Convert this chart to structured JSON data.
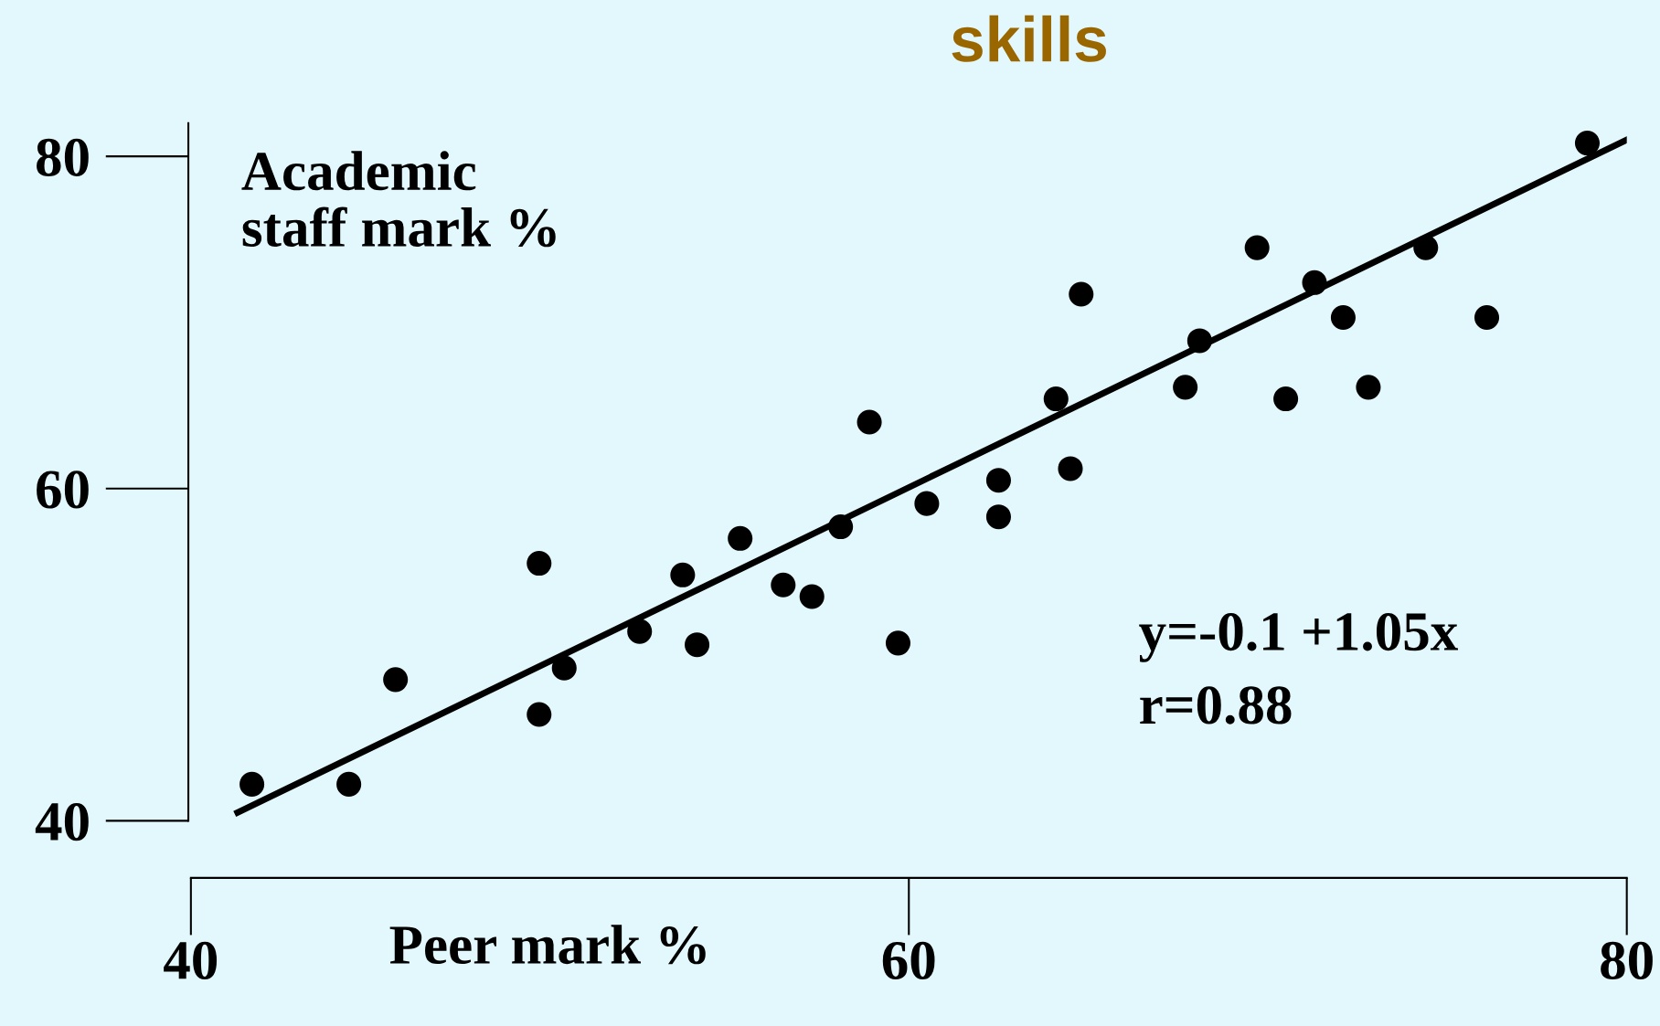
{
  "chart_data": {
    "type": "scatter",
    "title": "skills",
    "xlabel": "Peer mark %",
    "ylabel": "Academic\nstaff mark %",
    "xlim": [
      40,
      80
    ],
    "ylim": [
      40,
      82
    ],
    "xticks": [
      40,
      60,
      80
    ],
    "yticks": [
      40,
      60,
      80
    ],
    "grid": false,
    "legend": false,
    "series": [
      {
        "marker": "circle",
        "color": "#000000",
        "x": [
          41.7,
          44.4,
          45.7,
          49.7,
          49.7,
          50.4,
          52.5,
          53.7,
          54.1,
          55.3,
          56.5,
          57.3,
          58.1,
          58.9,
          59.7,
          60.5,
          62.5,
          62.5,
          64.1,
          64.5,
          64.8,
          67.7,
          68.1,
          69.7,
          70.5,
          71.3,
          72.1,
          72.8,
          74.4,
          76.1,
          78.9
        ],
        "values": [
          42.2,
          42.2,
          48.5,
          55.5,
          46.4,
          49.2,
          51.4,
          54.8,
          50.6,
          57.0,
          54.2,
          53.5,
          57.7,
          64.0,
          50.7,
          59.1,
          60.5,
          58.3,
          65.4,
          61.2,
          71.7,
          66.1,
          68.9,
          74.5,
          65.4,
          72.4,
          70.3,
          66.1,
          74.5,
          70.3,
          80.8
        ]
      },
      {
        "type": "line",
        "color": "#000000",
        "line_style": "solid",
        "x": [
          41.3,
          80.0
        ],
        "values": [
          40.5,
          81.0
        ]
      }
    ],
    "annotations": [
      "y=-0.1 +1.05x",
      "r=0.88"
    ]
  }
}
